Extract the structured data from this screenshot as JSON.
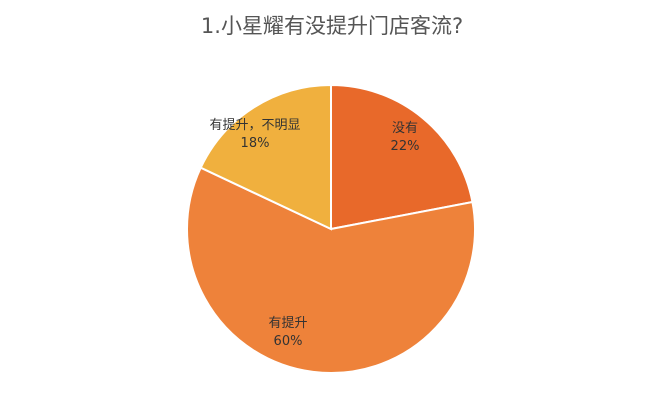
{
  "chart_data": {
    "type": "pie",
    "title": "1.小星耀有没提升门店客流?",
    "slices": [
      {
        "label": "没有",
        "value": 22,
        "value_label": "22%",
        "color": "#E8692A"
      },
      {
        "label": "有提升",
        "value": 60,
        "value_label": "60%",
        "color": "#EE823A"
      },
      {
        "label": "有提升，不明显",
        "value": 18,
        "value_label": "18%",
        "color": "#F0B03E"
      }
    ],
    "start_angle_deg": 0,
    "direction": "clockwise",
    "legend": "none"
  }
}
